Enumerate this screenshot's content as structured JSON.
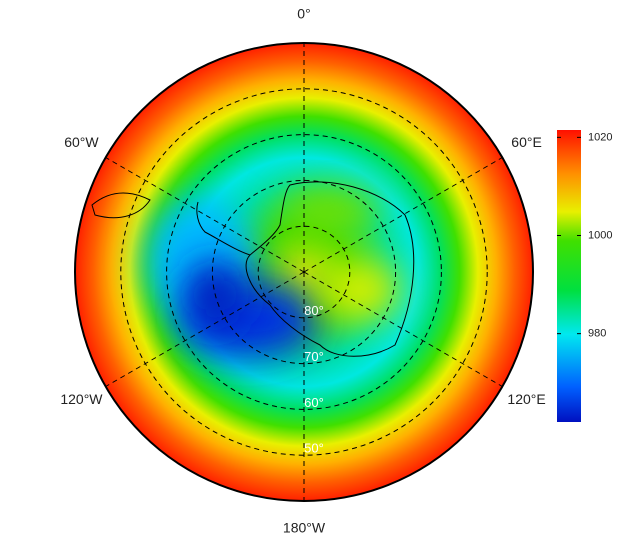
{
  "chart_data": {
    "type": "polar-map",
    "longitudes": [
      {
        "value": 0,
        "label": "0°"
      },
      {
        "value": 60,
        "label": "60°E"
      },
      {
        "value": 120,
        "label": "120°E"
      },
      {
        "value": 180,
        "label": "180°W"
      },
      {
        "value": -120,
        "label": "120°W"
      },
      {
        "value": -60,
        "label": "60°W"
      }
    ],
    "latitudes": [
      {
        "value": 80,
        "label": "80°"
      },
      {
        "value": 70,
        "label": "70°"
      },
      {
        "value": 60,
        "label": "60°"
      },
      {
        "value": 50,
        "label": "50°"
      }
    ],
    "latlim": [
      90,
      40
    ],
    "colorbar": {
      "range": [
        962,
        1021.5
      ],
      "ticks": [
        980,
        1000,
        1020
      ]
    }
  }
}
